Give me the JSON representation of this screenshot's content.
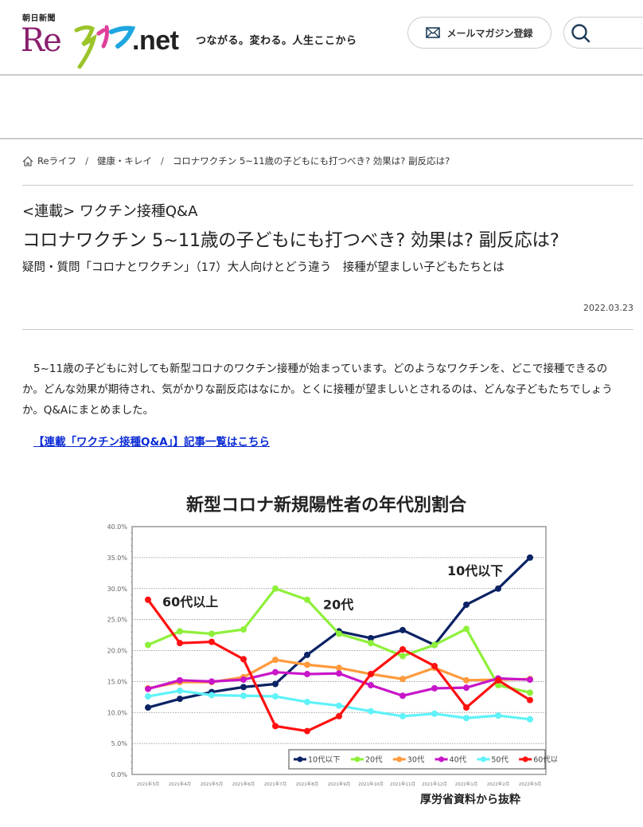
{
  "header": {
    "logo": {
      "newspaper": "朝日新聞",
      "newspaper_sun": "日",
      "re": "Re",
      "raifu": "ライフ",
      "net": ".net"
    },
    "tagline": "つながる。変わる。人生ここから",
    "mail_button": "メールマガジン登録",
    "search_icon": "search-icon",
    "mail_icon": "envelope-icon"
  },
  "breadcrumb": {
    "items": [
      {
        "label": "Reライフ",
        "icon": "home-icon"
      },
      {
        "label": "健康・キレイ"
      },
      {
        "label": "コロナワクチン 5~11歳の子どもにも打つべき? 効果は? 副反応は?"
      }
    ],
    "separator": "/"
  },
  "article": {
    "series": "<連載> ワクチン接種Q&A",
    "title": "コロナワクチン 5~11歳の子どもにも打つべき? 効果は? 副反応は?",
    "subtitle": "疑問・質問「コロナとワクチン」（17）大人向けとどう違う　接種が望ましい子どもたちとは",
    "date": "2022.03.23",
    "lead": "5~11歳の子どもに対しても新型コロナのワクチン接種が始まっています。どのようなワクチンを、どこで接種できるのか。どんな効果が期待され、気がかりな副反応はなにか。とくに接種が望ましいとされるのは、どんな子どもたちでしょうか。Q&Aにまとめました。",
    "series_link": "【連載「ワクチン接種Q&A」】記事一覧はこちら"
  },
  "chart_data": {
    "type": "line",
    "title": "新型コロナ新規陽性者の年代別割合",
    "source": "厚労省資料から抜粋",
    "xlabel": "",
    "ylabel": "",
    "ylim": [
      0,
      40
    ],
    "yticks": [
      "0.0%",
      "5.0%",
      "10.0%",
      "15.0%",
      "20.0%",
      "25.0%",
      "30.0%",
      "35.0%",
      "40.0%"
    ],
    "grid": true,
    "legend_position": "bottom-right inside",
    "categories": [
      "2021年3月",
      "2021年4月",
      "2021年5月",
      "2021年6月",
      "2021年7月",
      "2021年8月",
      "2021年9月",
      "2021年10月",
      "2021年11月",
      "2021年12月",
      "2022年1月",
      "2022年2月",
      "2022年3月"
    ],
    "series": [
      {
        "name": "10代以下",
        "color": "#0b2265",
        "values": [
          10.8,
          12.2,
          13.3,
          14.1,
          14.6,
          19.3,
          23.1,
          22.0,
          23.3,
          20.9,
          27.4,
          30.0,
          35.0
        ]
      },
      {
        "name": "20代",
        "color": "#8ef03a",
        "values": [
          20.9,
          23.1,
          22.7,
          23.4,
          30.0,
          28.2,
          22.7,
          21.2,
          19.1,
          20.9,
          23.5,
          14.4,
          13.2
        ]
      },
      {
        "name": "30代",
        "color": "#ff9a3c",
        "values": [
          13.9,
          14.9,
          14.9,
          15.7,
          18.5,
          17.7,
          17.2,
          16.2,
          15.4,
          17.2,
          15.2,
          15.3,
          15.4
        ]
      },
      {
        "name": "40代",
        "color": "#c815c8",
        "values": [
          13.8,
          15.2,
          15.0,
          15.3,
          16.5,
          16.2,
          16.3,
          14.4,
          12.7,
          13.9,
          14.0,
          15.5,
          15.3
        ]
      },
      {
        "name": "50代",
        "color": "#5ff2f8",
        "values": [
          12.6,
          13.5,
          12.8,
          12.7,
          12.6,
          11.7,
          11.1,
          10.2,
          9.4,
          9.8,
          9.1,
          9.5,
          8.9
        ]
      },
      {
        "name": "60代以上",
        "color": "#ff1010",
        "values": [
          28.2,
          21.2,
          21.4,
          18.6,
          7.8,
          7.0,
          9.4,
          16.2,
          20.2,
          17.5,
          10.8,
          15.2,
          12.0
        ]
      }
    ],
    "annotations": [
      {
        "text": "60代以上",
        "x_index": 0.45,
        "y": 27.8
      },
      {
        "text": "20代",
        "x_index": 5.5,
        "y": 27.3
      },
      {
        "text": "10代以下",
        "x_index": 9.4,
        "y": 32.8
      }
    ]
  }
}
